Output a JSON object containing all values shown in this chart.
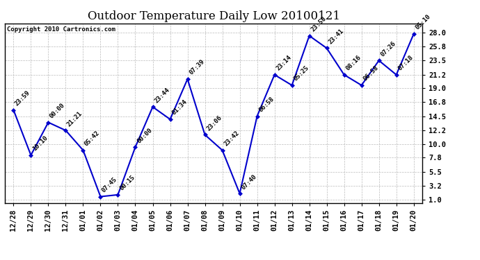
{
  "title": "Outdoor Temperature Daily Low 20100121",
  "copyright_text": "Copyright 2010 Cartronics.com",
  "x_labels": [
    "12/28",
    "12/29",
    "12/30",
    "12/31",
    "01/01",
    "01/02",
    "01/03",
    "01/04",
    "01/05",
    "01/06",
    "01/07",
    "01/08",
    "01/09",
    "01/10",
    "01/11",
    "01/12",
    "01/13",
    "01/14",
    "01/15",
    "01/16",
    "01/17",
    "01/18",
    "01/19",
    "01/20"
  ],
  "y_values": [
    15.5,
    8.2,
    13.5,
    12.2,
    9.0,
    1.5,
    1.8,
    9.5,
    16.0,
    14.0,
    20.5,
    11.5,
    9.0,
    2.0,
    14.5,
    21.2,
    19.5,
    27.5,
    25.5,
    21.2,
    19.5,
    23.5,
    21.2,
    27.8
  ],
  "time_labels": [
    "23:59",
    "10:10",
    "00:00",
    "21:21",
    "05:42",
    "07:45",
    "00:15",
    "00:00",
    "23:44",
    "01:34",
    "07:39",
    "23:06",
    "23:42",
    "07:40",
    "06:58",
    "23:14",
    "05:25",
    "23:58",
    "23:41",
    "08:16",
    "06:58",
    "07:26",
    "07:18",
    "05:10"
  ],
  "line_color": "#0000CC",
  "marker_color": "#0000CC",
  "background_color": "#FFFFFF",
  "grid_color": "#BBBBBB",
  "y_ticks": [
    1.0,
    3.2,
    5.5,
    7.8,
    10.0,
    12.2,
    14.5,
    16.8,
    19.0,
    21.2,
    23.5,
    25.8,
    28.0
  ],
  "ylim": [
    0.5,
    29.5
  ],
  "title_fontsize": 12,
  "tick_fontsize": 7.5,
  "annot_fontsize": 6.5
}
